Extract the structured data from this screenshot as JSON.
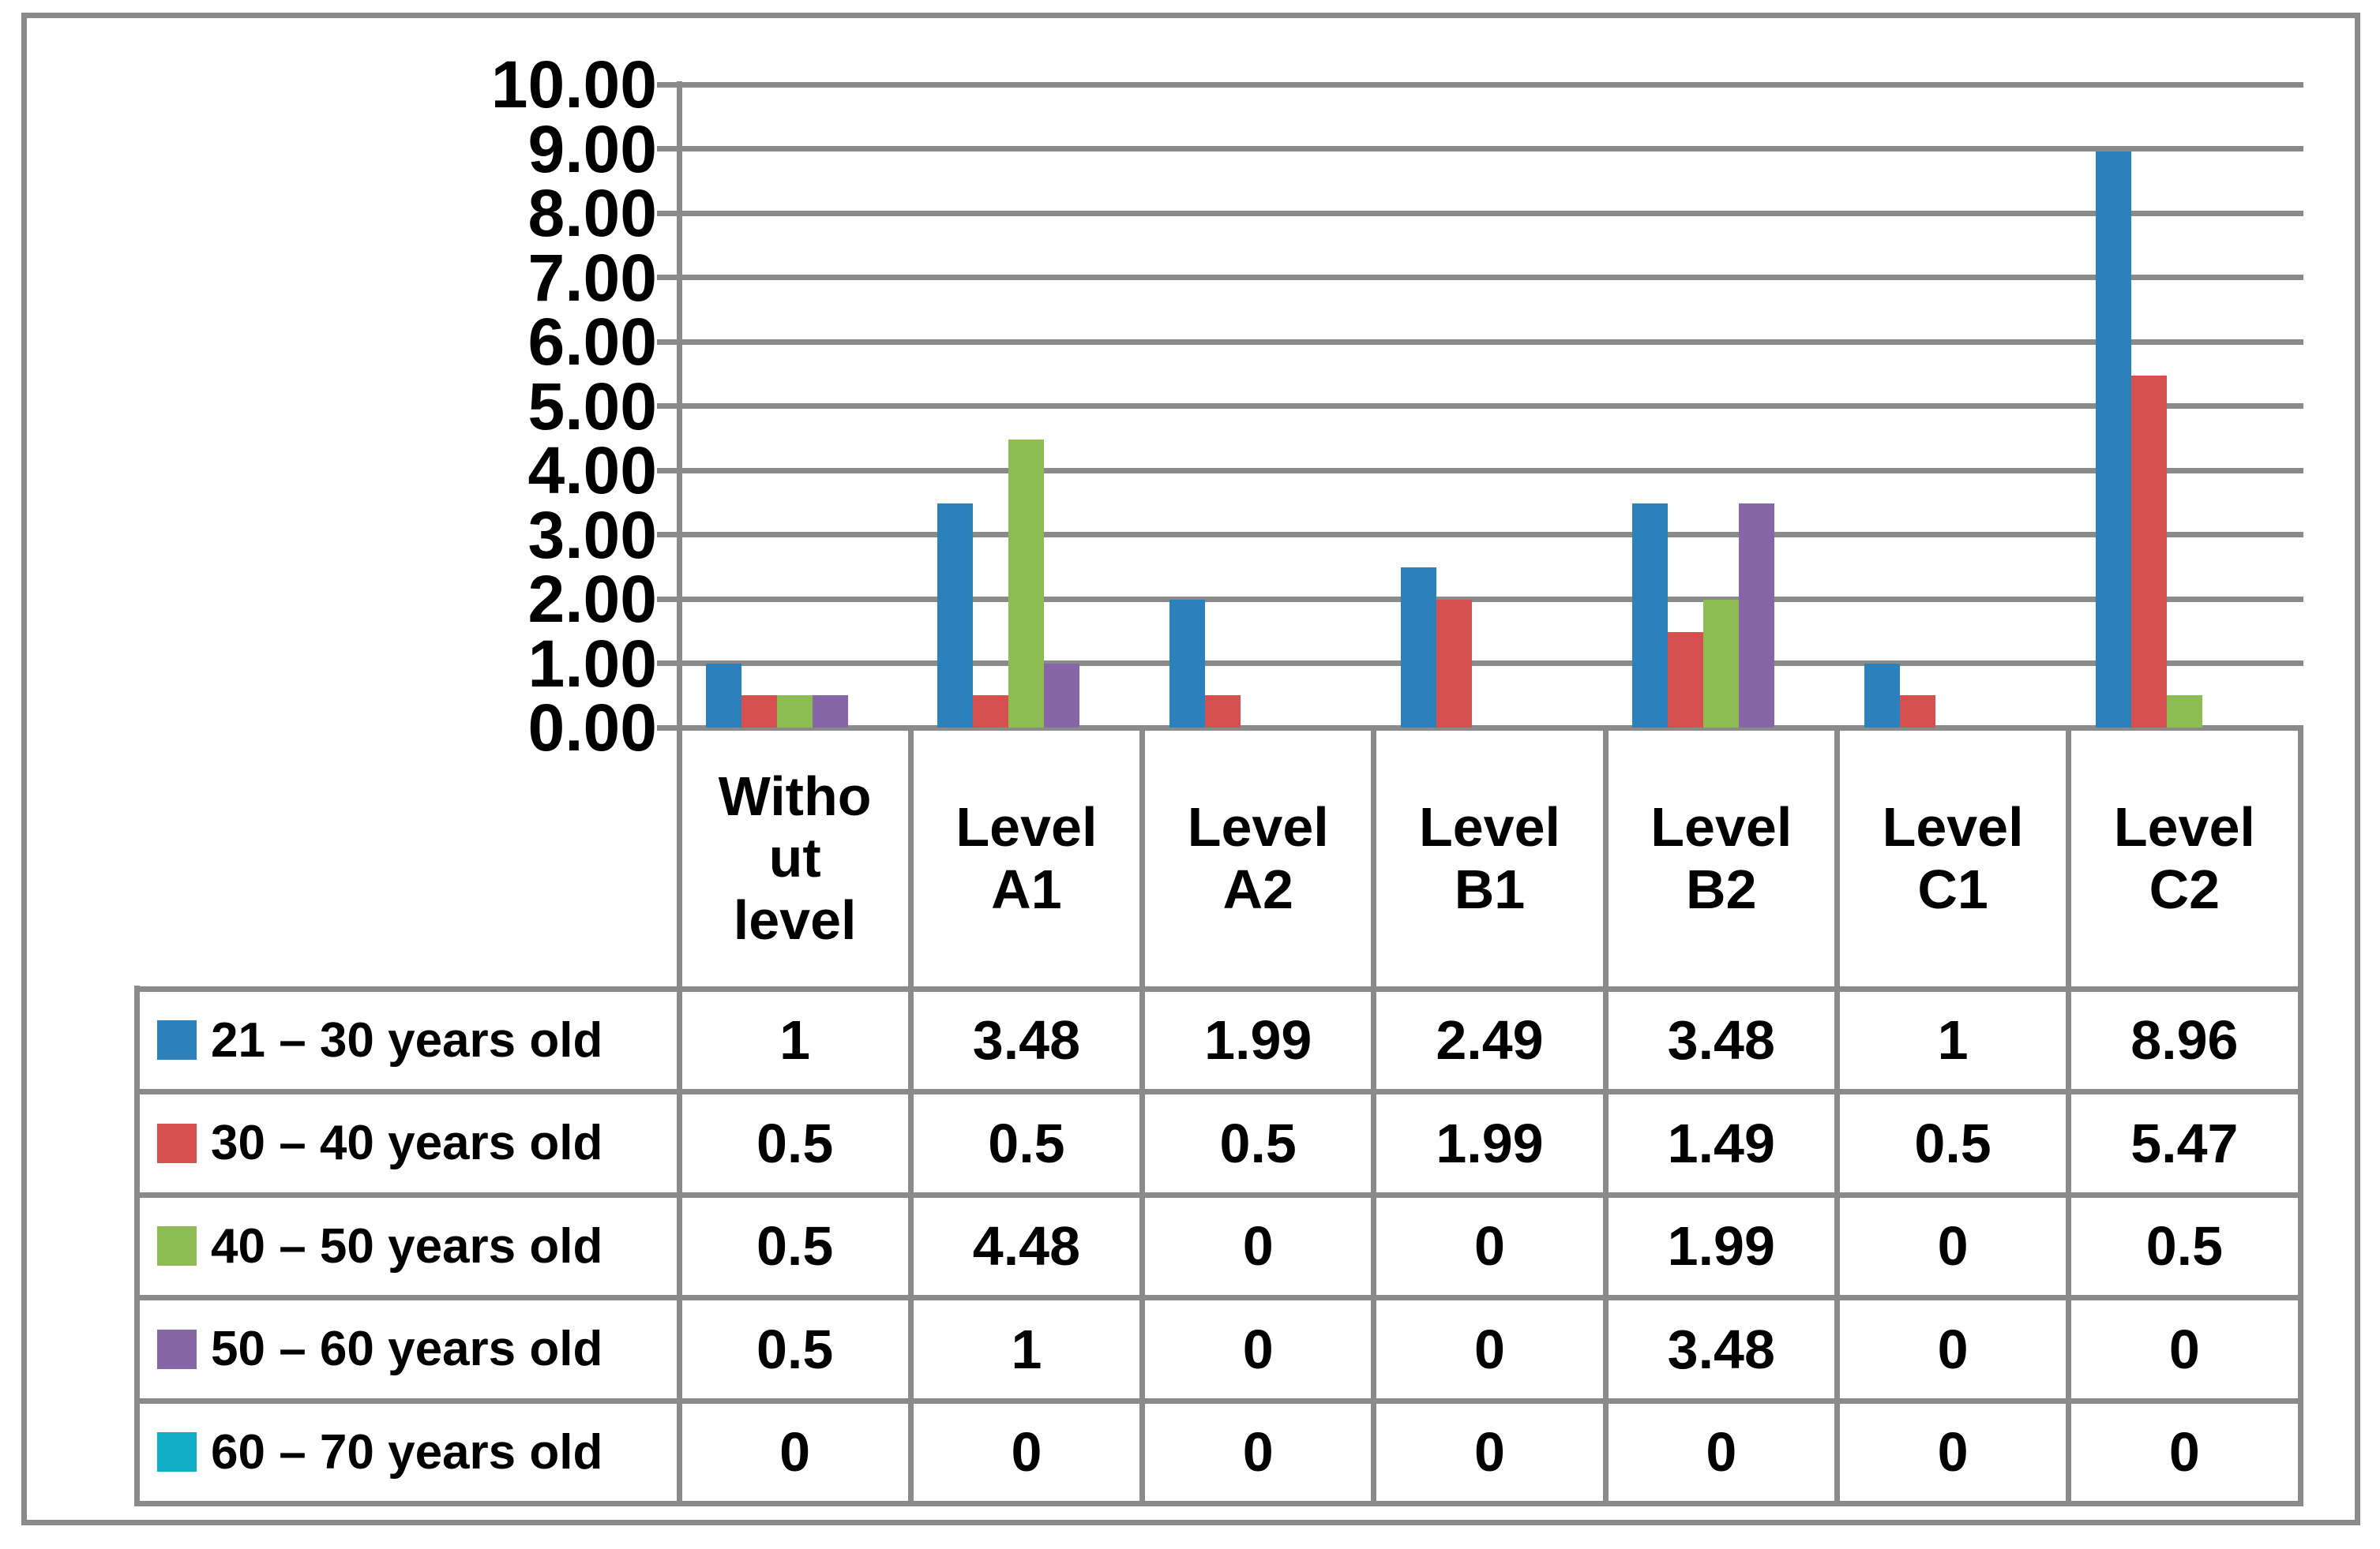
{
  "chart_data": {
    "type": "bar",
    "title": "",
    "xlabel": "",
    "ylabel": "",
    "categories": [
      "Without level",
      "Level A1",
      "Level A2",
      "Level B1",
      "Level B2",
      "Level C1",
      "Level C2"
    ],
    "series": [
      {
        "name": "21 – 30 years old",
        "color": "#2A81BC",
        "values": [
          1,
          3.48,
          1.99,
          2.49,
          3.48,
          1,
          8.96
        ]
      },
      {
        "name": "30 – 40 years old",
        "color": "#D5504E",
        "values": [
          0.5,
          0.5,
          0.5,
          1.99,
          1.49,
          0.5,
          5.47
        ]
      },
      {
        "name": "40 – 50 years old",
        "color": "#8CBC52",
        "values": [
          0.5,
          4.48,
          0,
          0,
          1.99,
          0,
          0.5
        ]
      },
      {
        "name": "50 – 60 years old",
        "color": "#8766A7",
        "values": [
          0.5,
          1,
          0,
          0,
          3.48,
          0,
          0
        ]
      },
      {
        "name": "60 – 70 years old",
        "color": "#10AEC6",
        "values": [
          0,
          0,
          0,
          0,
          0,
          0,
          0
        ]
      }
    ],
    "ylim": [
      0,
      10
    ],
    "ytick_labels": [
      "10.00",
      "9.00",
      "8.00",
      "7.00",
      "6.00",
      "5.00",
      "4.00",
      "3.00",
      "2.00",
      "1.00",
      "0.00"
    ],
    "grid": true,
    "legend_position": "table-left"
  },
  "table": {
    "category_display": [
      "Witho\nut\nlevel",
      "Level\nA1",
      "Level\nA2",
      "Level\nB1",
      "Level\nB2",
      "Level\nC1",
      "Level\nC2"
    ],
    "rows": [
      {
        "label": "21 – 30 years old",
        "swatch_color": "#2A81BC",
        "values": [
          "1",
          "3.48",
          "1.99",
          "2.49",
          "3.48",
          "1",
          "8.96"
        ]
      },
      {
        "label": "30 – 40 years old",
        "swatch_color": "#D5504E",
        "values": [
          "0.5",
          "0.5",
          "0.5",
          "1.99",
          "1.49",
          "0.5",
          "5.47"
        ]
      },
      {
        "label": "40 – 50 years old",
        "swatch_color": "#8CBC52",
        "values": [
          "0.5",
          "4.48",
          "0",
          "0",
          "1.99",
          "0",
          "0.5"
        ]
      },
      {
        "label": "50 – 60 years old",
        "swatch_color": "#8766A7",
        "values": [
          "0.5",
          "1",
          "0",
          "0",
          "3.48",
          "0",
          "0"
        ]
      },
      {
        "label": "60 – 70 years old",
        "swatch_color": "#10AEC6",
        "values": [
          "0",
          "0",
          "0",
          "0",
          "0",
          "0",
          "0"
        ]
      }
    ]
  },
  "colors": {
    "line": "#8A8A8A",
    "text": "#000000",
    "background": "#FFFFFF"
  }
}
